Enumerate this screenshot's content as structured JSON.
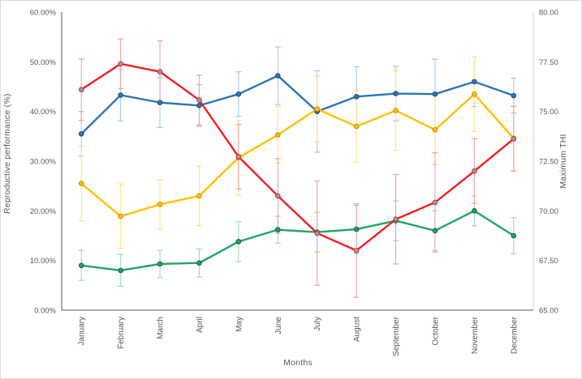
{
  "chart_data": {
    "type": "line",
    "title": "",
    "grid": false,
    "legend": "none",
    "x_label": "Months",
    "categories": [
      "January",
      "February",
      "March",
      "April",
      "May",
      "June",
      "July",
      "August",
      "September",
      "October",
      "November",
      "December"
    ],
    "left_axis": {
      "label": "Reproductive performance (%)",
      "min": 0,
      "max": 60,
      "tick_labels": [
        "0.00%",
        "10.00%",
        "20.00%",
        "30.00%",
        "40.00%",
        "50.00%",
        "60.00%"
      ]
    },
    "right_axis": {
      "label": "Maximum THI",
      "min": 65,
      "max": 80,
      "tick_labels": [
        "65.00",
        "67.50",
        "70.00",
        "72.50",
        "75.00",
        "77.50",
        "80.00"
      ]
    },
    "series": [
      {
        "name": "blue-series",
        "color": "#2E75B6",
        "errbar_color": "#A8C8E8",
        "marker_fill": "#2E75B6",
        "marker_stroke": "#1F4E79",
        "values_pct": [
          35.5,
          43.3,
          41.8,
          41.2,
          43.5,
          47.2,
          40.0,
          43.0,
          43.6,
          43.5,
          46.0,
          43.2
        ],
        "errors_pct": [
          4.5,
          5.2,
          5.0,
          4.2,
          4.5,
          5.8,
          8.2,
          6.0,
          5.5,
          7.0,
          5.0,
          3.5
        ]
      },
      {
        "name": "yellow-series",
        "color": "#FFC000",
        "errbar_color": "#FFE08A",
        "marker_fill": "#FFC000",
        "marker_stroke": "#BF9000",
        "values_pct": [
          25.5,
          18.9,
          21.3,
          23.0,
          30.7,
          35.3,
          40.5,
          37.0,
          40.2,
          36.3,
          43.5,
          34.6
        ],
        "errors_pct": [
          7.5,
          6.5,
          5.0,
          6.0,
          7.5,
          5.7,
          6.6,
          7.2,
          8.0,
          7.0,
          7.5,
          6.5
        ]
      },
      {
        "name": "green-series",
        "color": "#21A366",
        "errbar_color": "#9FDCB8",
        "marker_fill": "#21A366",
        "marker_stroke": "#155D39",
        "values_pct": [
          9.0,
          8.0,
          9.3,
          9.5,
          13.8,
          16.2,
          15.7,
          16.3,
          18.0,
          16.0,
          20.0,
          15.0
        ],
        "errors_pct": [
          3.0,
          3.2,
          2.7,
          2.8,
          4.0,
          2.7,
          4.0,
          4.8,
          4.0,
          4.0,
          3.0,
          3.6
        ]
      },
      {
        "name": "red-series",
        "color": "#ED2024",
        "errbar_color": "#F4A2A2",
        "marker_fill": "#7EA6B8",
        "marker_stroke": "#ED2024",
        "values_pct": [
          44.4,
          49.6,
          48.0,
          42.3,
          30.9,
          23.0,
          15.5,
          12.0,
          18.3,
          21.7,
          28.0,
          34.5
        ],
        "errors_pct": [
          6.2,
          5.0,
          6.2,
          5.0,
          6.5,
          7.5,
          10.5,
          9.4,
          9.0,
          10.0,
          6.5,
          6.5
        ]
      }
    ],
    "style": {
      "axis_line_color": "#595959",
      "secondary_axis_line_color": "#cfcfcf",
      "tick_text_color": "#595959",
      "frame_border_color": "#d9d9d9",
      "background": "#ffffff"
    }
  }
}
